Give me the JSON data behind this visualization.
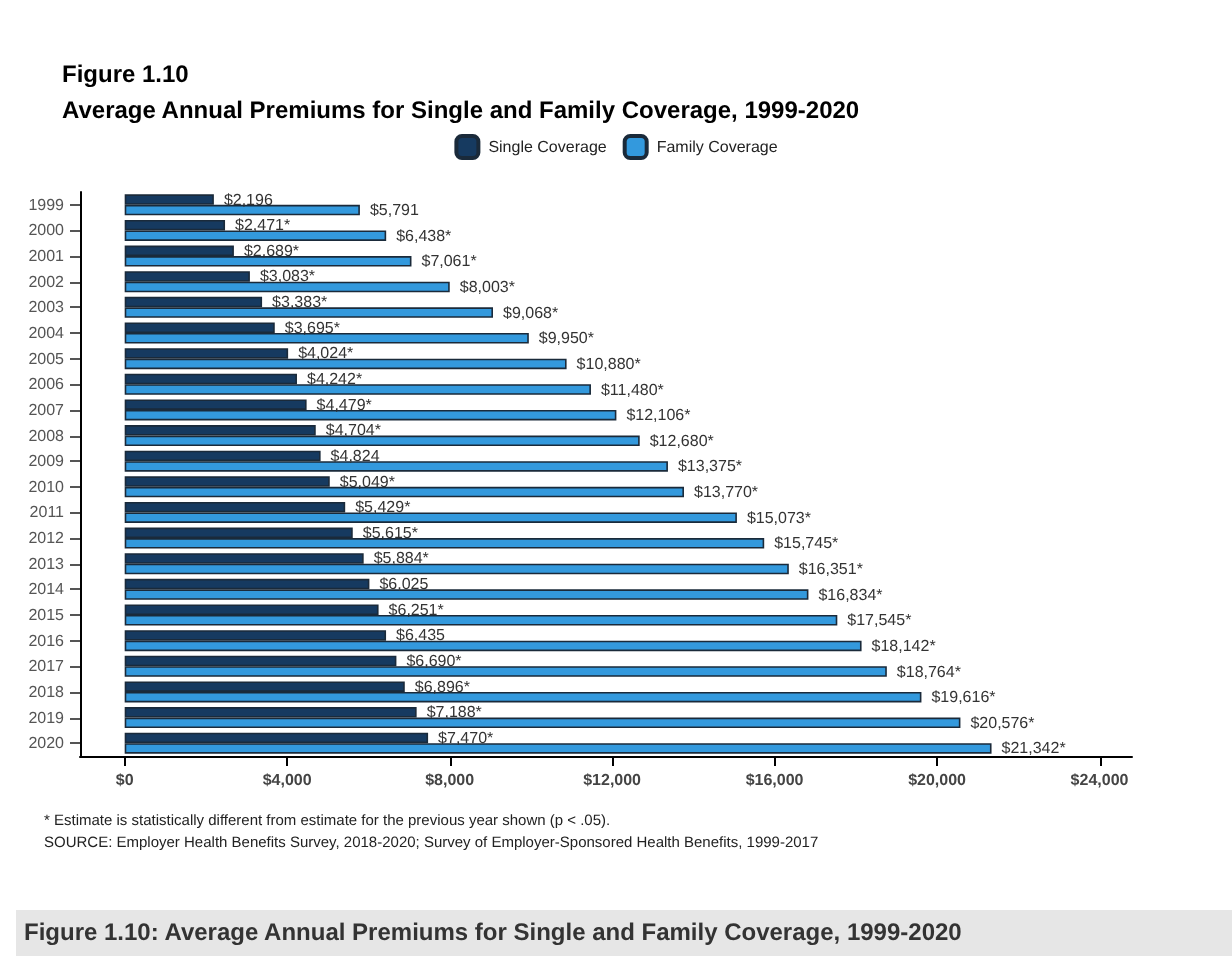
{
  "chart_data": {
    "type": "bar",
    "orientation": "horizontal",
    "title": "Figure 1.10",
    "subtitle": "Average Annual Premiums for Single and Family Coverage, 1999-2020",
    "categories": [
      "1999",
      "2000",
      "2001",
      "2002",
      "2003",
      "2004",
      "2005",
      "2006",
      "2007",
      "2008",
      "2009",
      "2010",
      "2011",
      "2012",
      "2013",
      "2014",
      "2015",
      "2016",
      "2017",
      "2018",
      "2019",
      "2020"
    ],
    "series": [
      {
        "name": "Single Coverage",
        "color": "#163a60",
        "values": [
          2196,
          2471,
          2689,
          3083,
          3383,
          3695,
          4024,
          4242,
          4479,
          4704,
          4824,
          5049,
          5429,
          5615,
          5884,
          6025,
          6251,
          6435,
          6690,
          6896,
          7188,
          7470
        ],
        "value_labels": [
          "$2,196",
          "$2,471*",
          "$2,689*",
          "$3,083*",
          "$3,383*",
          "$3,695*",
          "$4,024*",
          "$4,242*",
          "$4,479*",
          "$4,704*",
          "$4,824",
          "$5,049*",
          "$5,429*",
          "$5,615*",
          "$5,884*",
          "$6,025",
          "$6,251*",
          "$6,435",
          "$6,690*",
          "$6,896*",
          "$7,188*",
          "$7,470*"
        ]
      },
      {
        "name": "Family Coverage",
        "color": "#3399dd",
        "values": [
          5791,
          6438,
          7061,
          8003,
          9068,
          9950,
          10880,
          11480,
          12106,
          12680,
          13375,
          13770,
          15073,
          15745,
          16351,
          16834,
          17545,
          18142,
          18764,
          19616,
          20576,
          21342
        ],
        "value_labels": [
          "$5,791",
          "$6,438*",
          "$7,061*",
          "$8,003*",
          "$9,068*",
          "$9,950*",
          "$10,880*",
          "$11,480*",
          "$12,106*",
          "$12,680*",
          "$13,375*",
          "$13,770*",
          "$15,073*",
          "$15,745*",
          "$16,351*",
          "$16,834*",
          "$17,545*",
          "$18,142*",
          "$18,764*",
          "$19,616*",
          "$20,576*",
          "$21,342*"
        ]
      }
    ],
    "xlim": [
      -1100,
      24800
    ],
    "xticks": [
      {
        "value": 0,
        "label": "$0"
      },
      {
        "value": 4000,
        "label": "$4,000"
      },
      {
        "value": 8000,
        "label": "$8,000"
      },
      {
        "value": 12000,
        "label": "$12,000"
      },
      {
        "value": 16000,
        "label": "$16,000"
      },
      {
        "value": 20000,
        "label": "$20,000"
      },
      {
        "value": 24000,
        "label": "$24,000"
      }
    ],
    "grid": false,
    "legend": "top",
    "annotations": [
      "* Estimate is statistically different from estimate for the previous year shown (p < .05).",
      "SOURCE: Employer Health Benefits Survey, 2018-2020; Survey of Employer-Sponsored Health Benefits, 1999-2017",
      "Figure 1.10: Average Annual Premiums for Single and Family Coverage, 1999-2020"
    ]
  }
}
